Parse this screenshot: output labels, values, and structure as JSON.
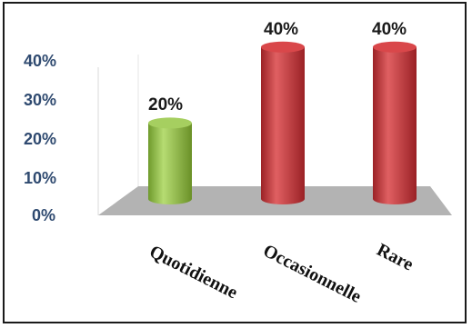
{
  "chart_data": {
    "type": "bar",
    "categories": [
      "Quotidienne",
      "Occasionnelle",
      "Rare"
    ],
    "values": [
      20,
      40,
      40
    ],
    "data_labels": [
      "20%",
      "40%",
      "40%"
    ],
    "yticks": [
      "0%",
      "10%",
      "20%",
      "30%",
      "40%"
    ],
    "ylim": [
      0,
      40
    ],
    "grid": false,
    "legend": "none",
    "title": "",
    "xlabel": "",
    "ylabel": "",
    "colors": {
      "Quotidienne": "#92c047",
      "Occasionnelle": "#c8373b",
      "Rare": "#c8373b",
      "floor": "#b2b2b2",
      "axis_text": "#2f4a70"
    },
    "style": "3d-cylinder"
  }
}
